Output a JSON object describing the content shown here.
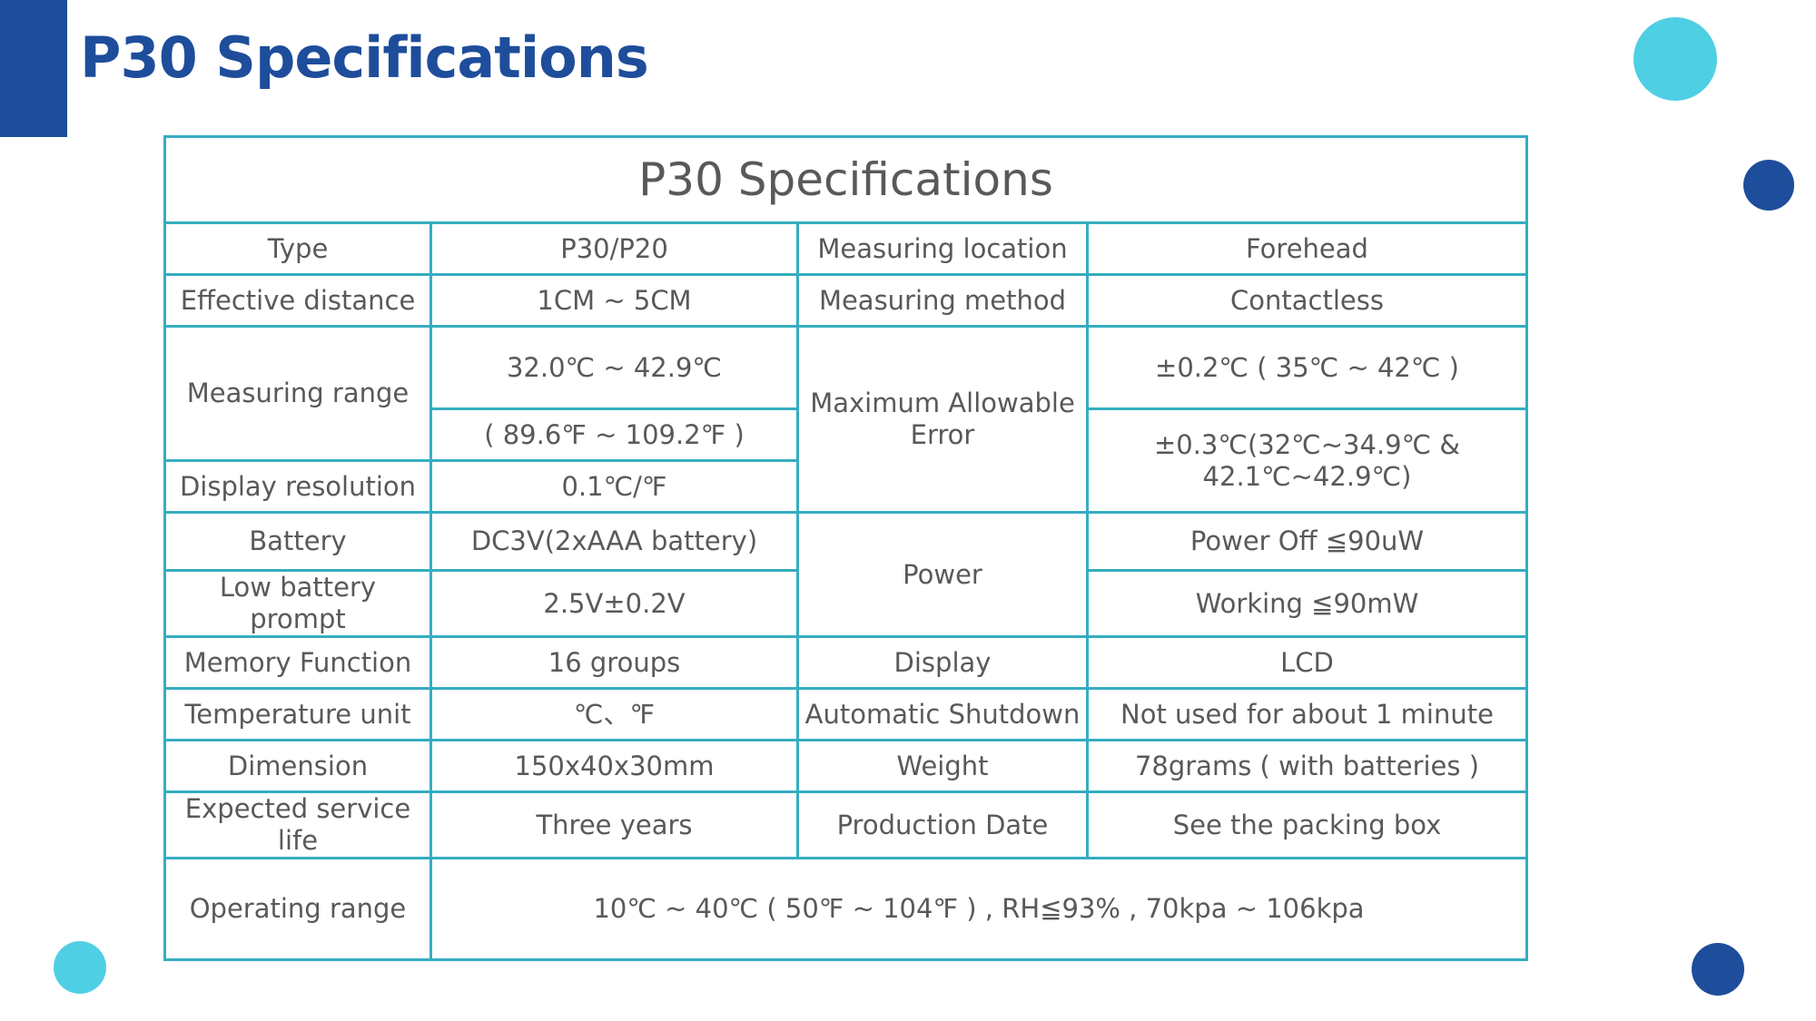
{
  "page": {
    "title": "P30 Specifications",
    "colors": {
      "brand_blue": "#1e4d9b",
      "accent_cyan": "#4fcfe4",
      "table_border": "#35adc0",
      "text": "#595959"
    }
  },
  "table": {
    "title": "P30 Specifications",
    "rows": {
      "type": {
        "label": "Type",
        "value": "P30/P20"
      },
      "measuring_location": {
        "label": "Measuring location",
        "value": "Forehead"
      },
      "effective_distance": {
        "label": "Effective distance",
        "value": "1CM ~ 5CM"
      },
      "measuring_method": {
        "label": "Measuring method",
        "value": "Contactless"
      },
      "measuring_range": {
        "label": "Measuring range",
        "value_c": "32.0℃ ~ 42.9℃",
        "value_f": "( 89.6℉ ~ 109.2℉ )"
      },
      "max_error": {
        "label": "Maximum Allowable Error",
        "value_1": "±0.2℃ ( 35℃ ~ 42℃ )",
        "value_2_line1": "±0.3℃(32℃~34.9℃ &",
        "value_2_line2": "42.1℃~42.9℃)"
      },
      "display_resolution": {
        "label": "Display resolution",
        "value": "0.1℃/℉"
      },
      "battery": {
        "label": "Battery",
        "value": "DC3V(2xAAA battery)"
      },
      "power": {
        "label": "Power",
        "value_off": "Power Off ≦90uW",
        "value_working": "Working ≦90mW"
      },
      "low_battery": {
        "label": "Low battery prompt",
        "value": "2.5V±0.2V"
      },
      "memory": {
        "label": "Memory Function",
        "value": "16 groups"
      },
      "display": {
        "label": "Display",
        "value": "LCD"
      },
      "temp_unit": {
        "label": "Temperature unit",
        "value": "℃、℉"
      },
      "auto_shutdown": {
        "label": "Automatic Shutdown",
        "value": "Not used for about 1 minute"
      },
      "dimension": {
        "label": "Dimension",
        "value": "150x40x30mm"
      },
      "weight": {
        "label": "Weight",
        "value": "78grams ( with batteries )"
      },
      "service_life": {
        "label": "Expected service life",
        "value": "Three years"
      },
      "production_date": {
        "label": "Production Date",
        "value": "See the packing box"
      },
      "operating_range": {
        "label": "Operating range",
        "value": "10℃ ~ 40℃ ( 50℉ ~ 104℉ ) , RH≦93% , 70kpa ~ 106kpa"
      }
    }
  }
}
